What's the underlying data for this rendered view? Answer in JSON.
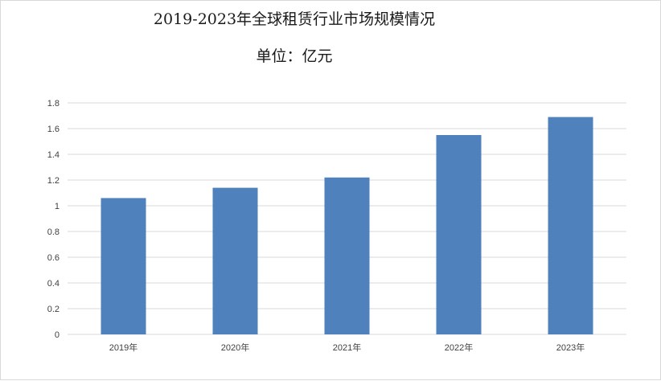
{
  "chart_data": {
    "type": "bar",
    "title": "2019-2023年全球租赁行业市场规模情况",
    "subtitle": "单位：亿元",
    "categories": [
      "2019年",
      "2020年",
      "2021年",
      "2022年",
      "2023年"
    ],
    "values": [
      1.06,
      1.14,
      1.22,
      1.55,
      1.69
    ],
    "xlabel": "",
    "ylabel": "",
    "ylim": [
      0,
      1.8
    ],
    "yticks": [
      "0",
      "0.2",
      "0.4",
      "0.6",
      "0.8",
      "1",
      "1.2",
      "1.4",
      "1.6",
      "1.8"
    ],
    "grid": true,
    "legend": "none",
    "bar_color": "#4f81bd",
    "grid_color": "#d9d9d9"
  }
}
